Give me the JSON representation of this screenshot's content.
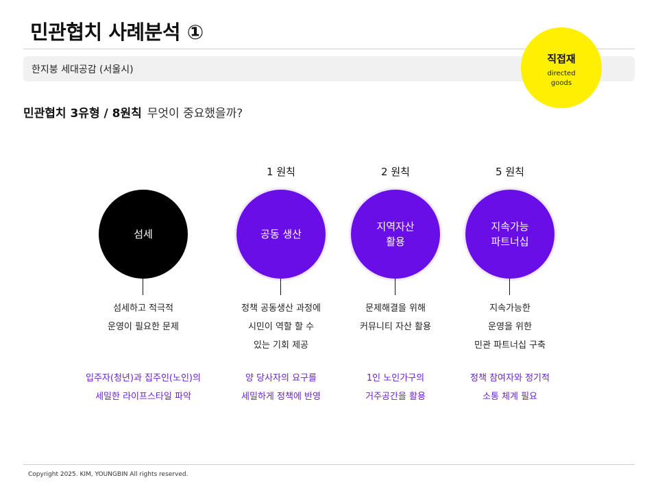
{
  "page": {
    "title": "민관협치 사례분석 ①",
    "subtitle": "한지붕 세대공감 (서울시)"
  },
  "badge": {
    "title": "직접재",
    "sub_line1": "directed",
    "sub_line2": "goods",
    "color": "#ffef00"
  },
  "question": {
    "strong": "민관협치 3유형 / 8원칙",
    "light": "무엇이 중요했을까?"
  },
  "colors": {
    "accent_purple": "#6a0ee8",
    "note_purple": "#6a1fd0",
    "black": "#000000"
  },
  "columns": [
    {
      "principle": "",
      "circle_line1": "섬세",
      "circle_line2": "",
      "desc": [
        "섬세하고 적극적",
        "운영이 필요한 문제"
      ],
      "note": [
        "입주자(청년)과 집주인(노인)의",
        "세밀한 라이프스타일 파악"
      ]
    },
    {
      "principle": "1 원칙",
      "circle_line1": "공동 생산",
      "circle_line2": "",
      "desc": [
        "정책 공동생산 과정에",
        "시민이 역할 할 수",
        "있는 기회 제공"
      ],
      "note": [
        "양 당사자의 요구를",
        "세밀하게 정책에 반영"
      ]
    },
    {
      "principle": "2 원칙",
      "circle_line1": "지역자산",
      "circle_line2": "활용",
      "desc": [
        "문제해결을 위해",
        "커뮤니티 자산 활용"
      ],
      "note": [
        "1인 노인가구의",
        "거주공간을 활용"
      ]
    },
    {
      "principle": "5 원칙",
      "circle_line1": "지속가능",
      "circle_line2": "파트너십",
      "desc": [
        "지속가능한",
        "운영을 위한",
        "민관 파트너십 구축"
      ],
      "note": [
        "정책 참여자와 정기적",
        "소통 체계 필요"
      ]
    }
  ],
  "footer": {
    "copyright": "Copyright 2025. KIM, YOUNGBIN All rights reserved."
  }
}
